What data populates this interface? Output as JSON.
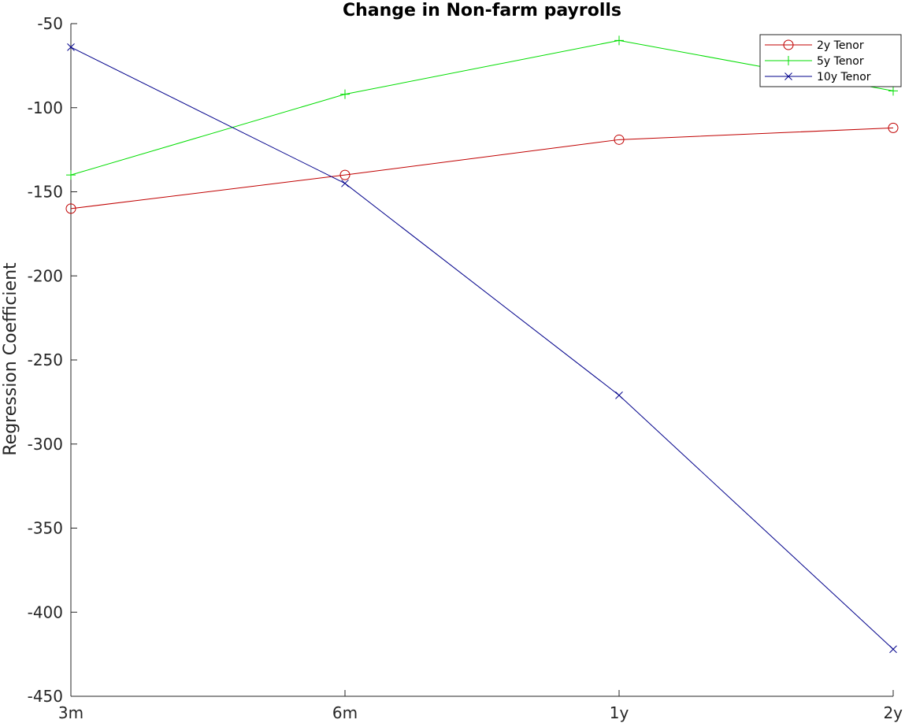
{
  "chart_data": {
    "type": "line",
    "title": "Change in Non-farm payrolls",
    "xlabel": "",
    "ylabel": "Regression Coefficient",
    "categories": [
      "3m",
      "6m",
      "1y",
      "2y"
    ],
    "ylim": [
      -450,
      -50
    ],
    "yticks": [
      -50,
      -100,
      -150,
      -200,
      -250,
      -300,
      -350,
      -400,
      -450
    ],
    "grid": false,
    "legend_position": "top-right",
    "series": [
      {
        "name": "2y Tenor",
        "values": [
          -160,
          -140,
          -119,
          -112
        ],
        "color": "#c00000",
        "marker": "circle"
      },
      {
        "name": "5y Tenor",
        "values": [
          -140,
          -92,
          -60,
          -90
        ],
        "color": "#00dd00",
        "marker": "plus"
      },
      {
        "name": "10y Tenor",
        "values": [
          -64,
          -145,
          -271,
          -422
        ],
        "color": "#00008b",
        "marker": "cross"
      }
    ]
  }
}
